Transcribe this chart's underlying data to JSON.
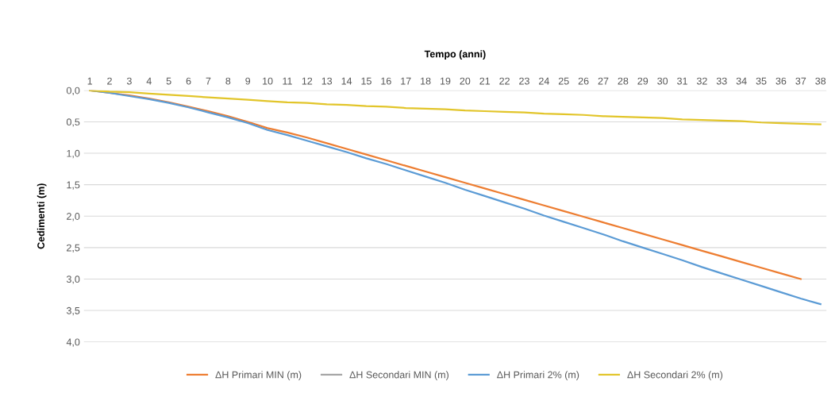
{
  "chart_data": {
    "type": "line",
    "xlabel": "Tempo (anni)",
    "ylabel": "Cedimenti (m)",
    "categories": [
      "1",
      "2",
      "3",
      "4",
      "5",
      "6",
      "7",
      "8",
      "9",
      "10",
      "11",
      "12",
      "13",
      "14",
      "15",
      "16",
      "17",
      "18",
      "19",
      "20",
      "21",
      "22",
      "23",
      "24",
      "25",
      "26",
      "27",
      "28",
      "29",
      "30",
      "31",
      "32",
      "33",
      "34",
      "35",
      "36",
      "37",
      "38"
    ],
    "series": [
      {
        "name": "ΔH Primari MIN (m)",
        "color": "#ed7d31",
        "values": [
          0,
          0.04,
          0.08,
          0.13,
          0.19,
          0.26,
          0.33,
          0.41,
          0.5,
          0.6,
          0.67,
          0.75,
          0.84,
          0.93,
          1.02,
          1.11,
          1.2,
          1.29,
          1.38,
          1.47,
          1.56,
          1.65,
          1.74,
          1.83,
          1.92,
          2.01,
          2.1,
          2.19,
          2.28,
          2.37,
          2.46,
          2.55,
          2.64,
          2.73,
          2.82,
          2.91,
          3.0,
          null
        ]
      },
      {
        "name": "ΔH Secondari MIN (m)",
        "color": "#a5a5a5",
        "values": [
          null,
          null,
          null,
          null,
          null,
          null,
          null,
          null,
          null,
          null,
          null,
          null,
          null,
          null,
          null,
          null,
          null,
          null,
          null,
          null,
          null,
          null,
          null,
          null,
          null,
          null,
          null,
          null,
          null,
          null,
          null,
          null,
          null,
          null,
          null,
          null,
          null,
          null
        ]
      },
      {
        "name": "ΔH Primari 2% (m)",
        "color": "#5b9bd5",
        "values": [
          0,
          0.04,
          0.09,
          0.14,
          0.2,
          0.27,
          0.35,
          0.43,
          0.52,
          0.63,
          0.71,
          0.8,
          0.89,
          0.98,
          1.08,
          1.17,
          1.27,
          1.37,
          1.47,
          1.58,
          1.68,
          1.78,
          1.88,
          1.99,
          2.09,
          2.19,
          2.29,
          2.4,
          2.5,
          2.6,
          2.7,
          2.81,
          2.91,
          3.01,
          3.11,
          3.21,
          3.31,
          3.4
        ]
      },
      {
        "name": "ΔH Secondari 2% (m)",
        "color": "#e2c52a",
        "values": [
          0,
          0.02,
          0.03,
          0.05,
          0.07,
          0.09,
          0.11,
          0.13,
          0.15,
          0.17,
          0.19,
          0.2,
          0.22,
          0.23,
          0.25,
          0.26,
          0.28,
          0.29,
          0.3,
          0.32,
          0.33,
          0.34,
          0.35,
          0.37,
          0.38,
          0.39,
          0.41,
          0.42,
          0.43,
          0.44,
          0.46,
          0.47,
          0.48,
          0.49,
          0.51,
          0.52,
          0.53,
          0.54
        ]
      }
    ],
    "ylim": [
      4.0,
      0.0
    ],
    "yticks": [
      {
        "value": 0,
        "label": "0,0"
      },
      {
        "value": 0.5,
        "label": "0,5"
      },
      {
        "value": 1,
        "label": "1,0"
      },
      {
        "value": 1.5,
        "label": "1,5"
      },
      {
        "value": 2,
        "label": "2,0"
      },
      {
        "value": 2.5,
        "label": "2,5"
      },
      {
        "value": 3,
        "label": "3,0"
      },
      {
        "value": 3.5,
        "label": "3,5"
      },
      {
        "value": 4,
        "label": "4,0"
      }
    ],
    "grid": "y",
    "legend": "bottom",
    "marker": "none",
    "line_style": "solid"
  }
}
